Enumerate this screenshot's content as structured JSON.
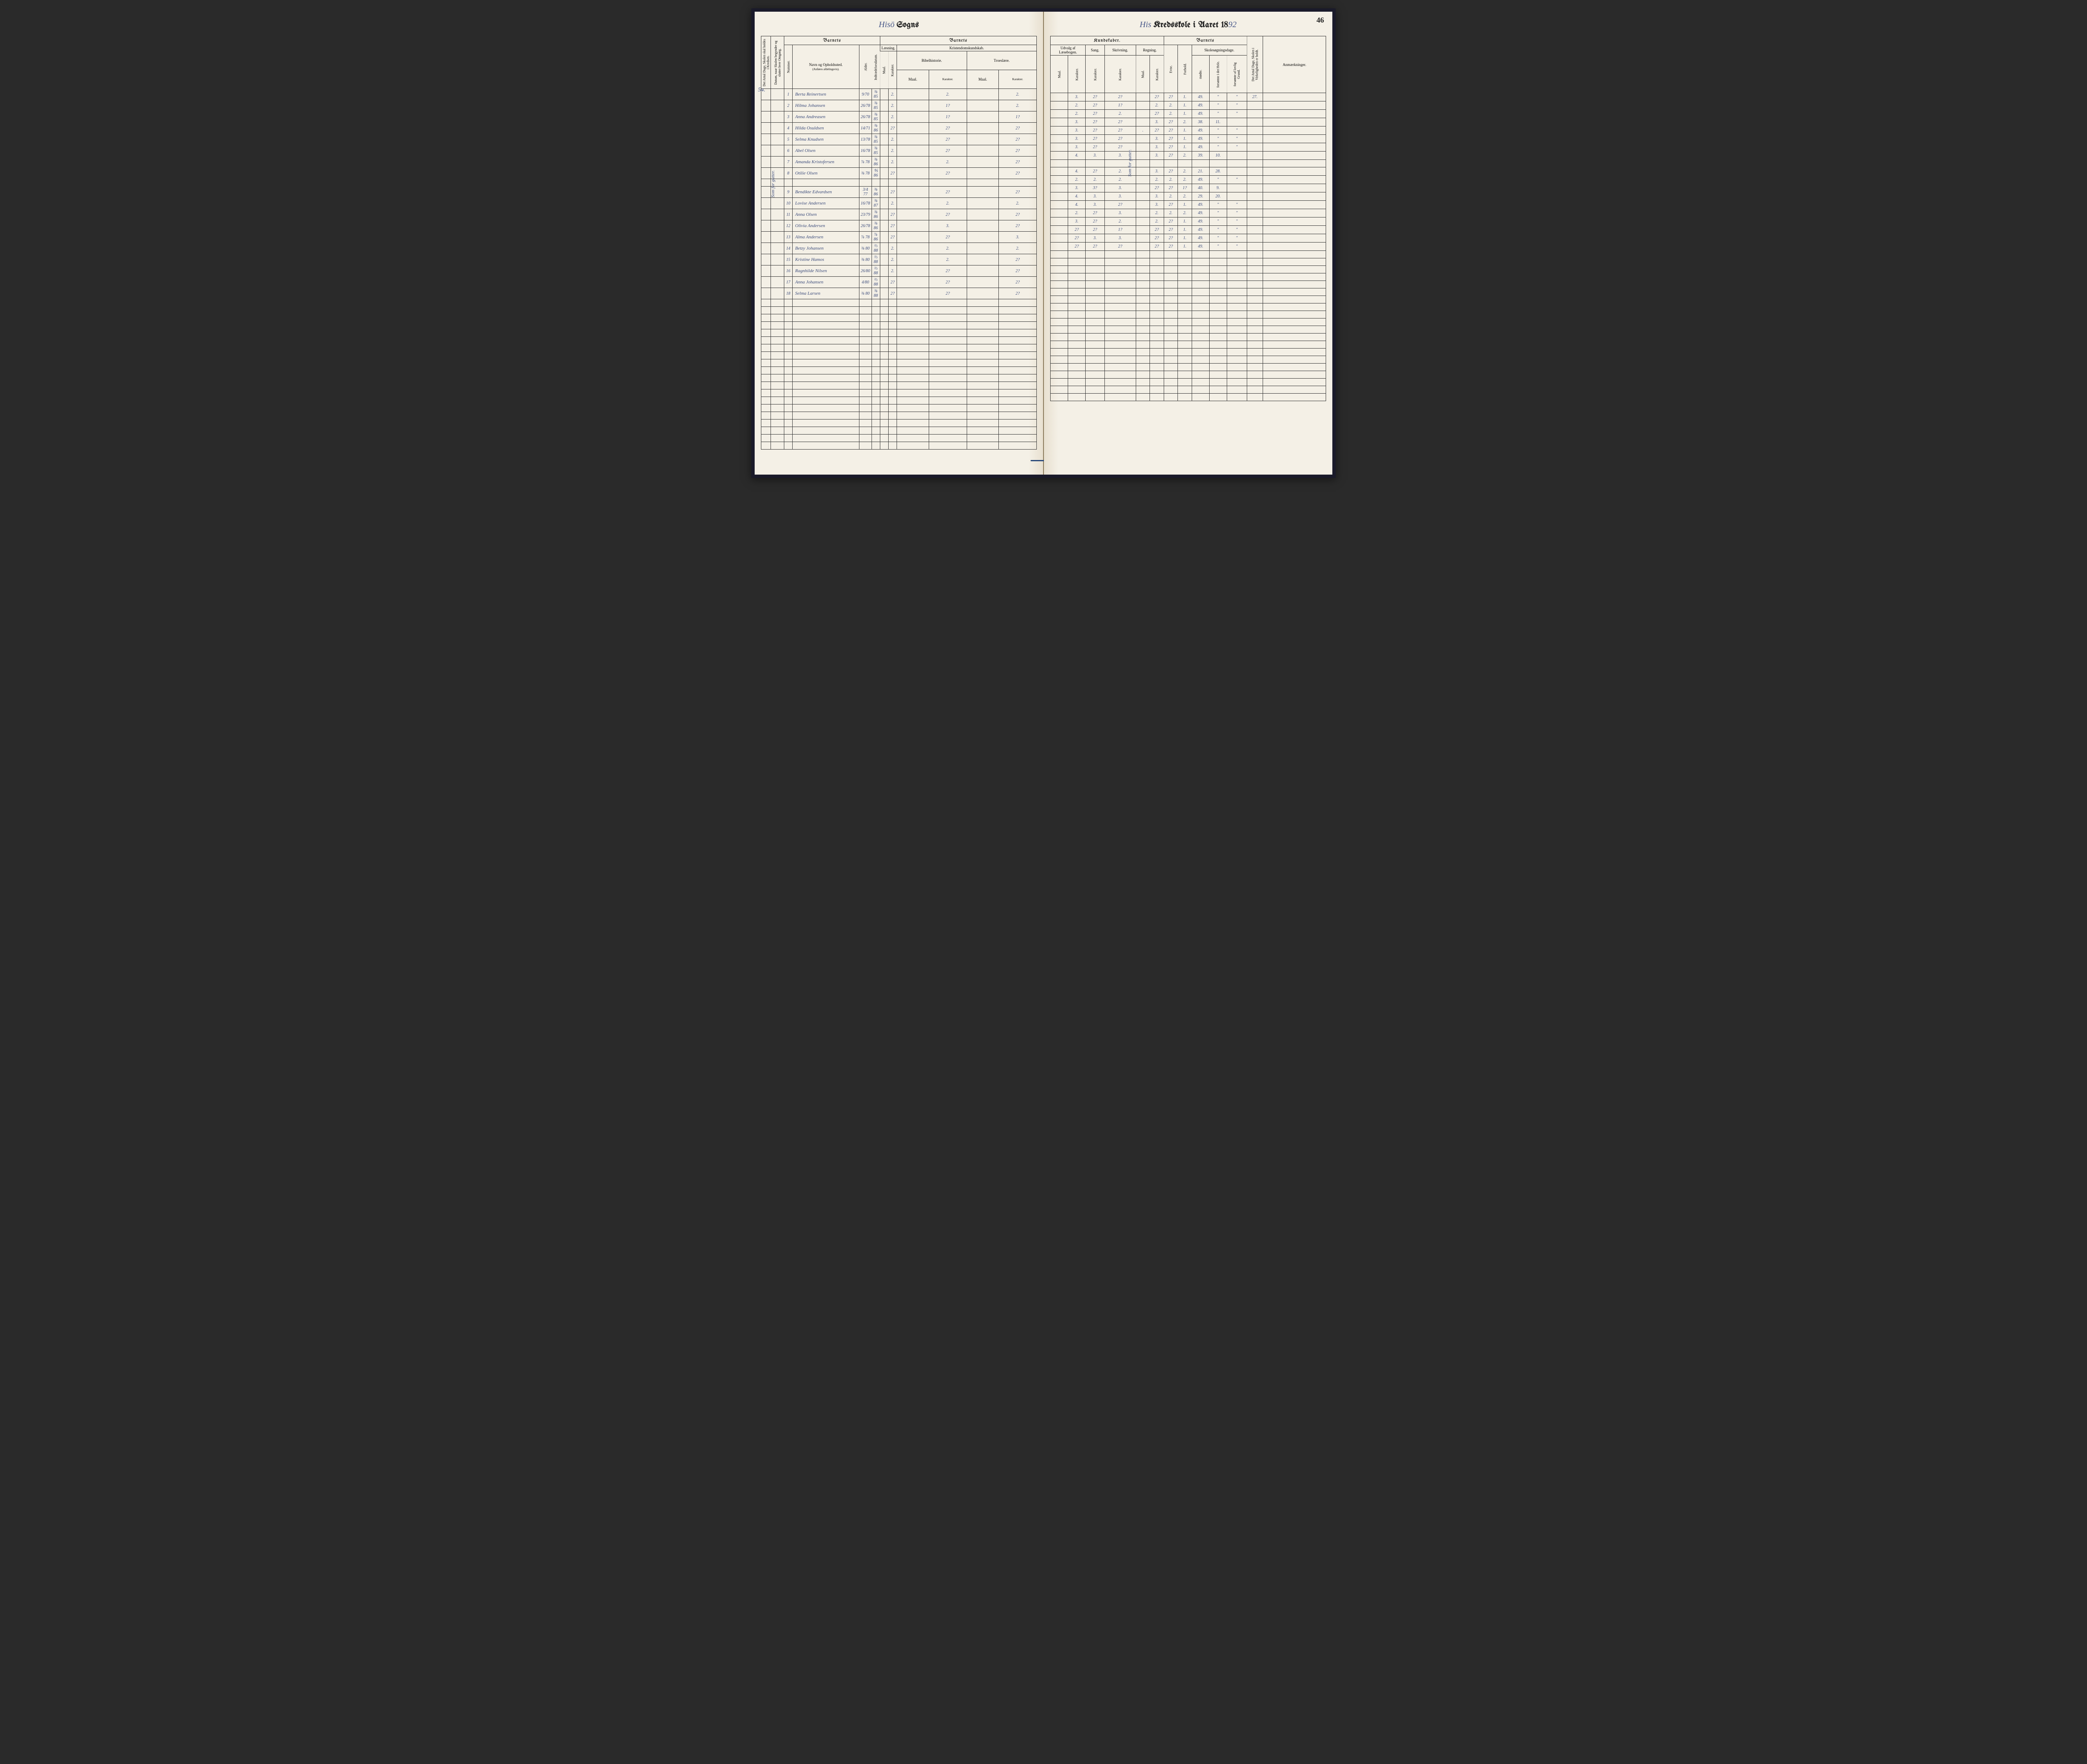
{
  "pageNumber": "46",
  "leftTitle": {
    "script": "Hisö",
    "print": "Sogns"
  },
  "rightTitle": {
    "script": "His",
    "print": "Kredsskole i Aaret 18",
    "year": "92"
  },
  "marginNote": "54.",
  "colors": {
    "paper": "#f4f0e6",
    "ink": "#222",
    "handwriting": "#3a4a7a",
    "border": "#333"
  },
  "headers": {
    "left": {
      "barnets": "Barnets",
      "antalDage": "Det Antal Dage, Skolen skal holdes i Kredsen.",
      "datum": "Datum, naar Skolen begynder og slutter hver Omgang.",
      "nummer": "Nummer.",
      "navn": "Navn og Opholdssted.",
      "navnSub": "(Anføres afdelingsvis).",
      "alder": "Alder.",
      "indtraedelse": "Indtrædelsesdatum.",
      "laesning": "Læsning.",
      "kristendom": "Kristendomskundskab.",
      "bibelhistorie": "Bibelhistorie.",
      "troeslaere": "Troeslære.",
      "maal": "Maal.",
      "karakter": "Karakter."
    },
    "right": {
      "kundskaber": "Kundskaber.",
      "barnets": "Barnets",
      "udvalg": "Udvalg af Læsebogen.",
      "sang": "Sang.",
      "skrivning": "Skrivning.",
      "regning": "Regning.",
      "evne": "Evne.",
      "forhold": "Forhold.",
      "skolesogning": "Skolesøgningsdage.",
      "modte": "mødte.",
      "forsomteHele": "forsømte i det Hele.",
      "forsomteGrund": "forsømte af lovlig Grund.",
      "antalDageHoldt": "Det Antal Dage, Skolen i Virkeligheden er holdt.",
      "anmaerkninger": "Anmærkninger.",
      "maal": "Maal.",
      "karakter": "Karakter."
    }
  },
  "topRightNote": "27.",
  "rows": [
    {
      "n": "1",
      "name": "Berta Reinertsen",
      "alder": "9/70",
      "ind": "⅜ 85",
      "laes_k": "2.",
      "bib_k": "2.",
      "tro_k": "2.",
      "udv_m": "",
      "udv_k": "3.",
      "sang": "2?",
      "skr": "2?",
      "reg_m": "",
      "reg_k": "2?",
      "evne": "2?",
      "forh": "1.",
      "modte": "49.",
      "fors1": "\"",
      "fors2": "\""
    },
    {
      "n": "2",
      "name": "Hilma Johansen",
      "alder": "26/78",
      "ind": "⅜ 85",
      "laes_k": "2.",
      "bib_k": "1?",
      "tro_k": "2.",
      "udv_m": "",
      "udv_k": "2.",
      "sang": "2?",
      "skr": "1?",
      "reg_m": "",
      "reg_k": "2.",
      "evne": "2.",
      "forh": "1.",
      "modte": "49.",
      "fors1": "\"",
      "fors2": "\""
    },
    {
      "n": "3",
      "name": "Anna Andreasen",
      "alder": "26/78",
      "ind": "⅜ 85",
      "laes_k": "2.",
      "bib_k": "1?",
      "tro_k": "1?",
      "udv_m": "",
      "udv_k": "2.",
      "sang": "2?",
      "skr": "2.",
      "reg_m": "",
      "reg_k": "2?",
      "evne": "2.",
      "forh": "1.",
      "modte": "49.",
      "fors1": "\"",
      "fors2": "\""
    },
    {
      "n": "4",
      "name": "Hilda Osuldsen",
      "alder": "14/71",
      "ind": "⅜ 86",
      "laes_k": "2?",
      "bib_k": "2?",
      "tro_k": "2?",
      "udv_m": "",
      "udv_k": "3.",
      "sang": "2?",
      "skr": "2?",
      "reg_m": "",
      "reg_k": "3.",
      "evne": "2?",
      "forh": "2.",
      "modte": "38.",
      "fors1": "11.",
      "fors2": ""
    },
    {
      "n": "5",
      "name": "Selma Knudsen",
      "alder": "13/78",
      "ind": "⅜ 85",
      "laes_k": "2.",
      "bib_k": "2?",
      "tro_k": "2?",
      "udv_m": "",
      "udv_k": "3.",
      "sang": "2?",
      "skr": "2?",
      "reg_m": ".",
      "reg_k": "2?",
      "evne": "2?",
      "forh": "1.",
      "modte": "49.",
      "fors1": "\"",
      "fors2": "\""
    },
    {
      "n": "6",
      "name": "Abel Olsen",
      "alder": "16/78",
      "ind": "⅜ 85",
      "laes_k": "2.",
      "bib_k": "2?",
      "tro_k": "2?",
      "udv_m": "",
      "udv_k": "3.",
      "sang": "2?",
      "skr": "2?",
      "reg_m": "",
      "reg_k": "3.",
      "evne": "2?",
      "forh": "1.",
      "modte": "49.",
      "fors1": "\"",
      "fors2": "\""
    },
    {
      "n": "7",
      "name": "Amanda Kristofersen",
      "alder": "⅞ 78",
      "ind": "⅜ 86",
      "laes_k": "2.",
      "bib_k": "2.",
      "tro_k": "2?",
      "udv_m": "",
      "udv_k": "3.",
      "sang": "2?",
      "skr": "2?",
      "reg_m": "",
      "reg_k": "3.",
      "evne": "2?",
      "forh": "1.",
      "modte": "49.",
      "fors1": "\"",
      "fors2": "\""
    },
    {
      "n": "8",
      "name": "Otilie Olsen",
      "alder": "⅜ 78",
      "ind": "⅘ 86",
      "laes_k": "2?",
      "bib_k": "2?",
      "tro_k": "2?",
      "udv_m": "",
      "udv_k": "4.",
      "sang": "3.",
      "skr": "3.",
      "reg_m": "",
      "reg_k": "3.",
      "evne": "2?",
      "forh": "2.",
      "modte": "39.",
      "fors1": "10.",
      "fors2": ""
    },
    {
      "gap": true
    },
    {
      "n": "9",
      "name": "Bendikte Edvardsen",
      "alder": "3/4 77",
      "ind": "⅜ 86",
      "laes_k": "2?",
      "bib_k": "2?",
      "tro_k": "2?",
      "udv_m": "",
      "udv_k": "4.",
      "sang": "2?",
      "skr": "2.",
      "reg_m": "",
      "reg_k": "3.",
      "evne": "2?",
      "forh": "2.",
      "modte": "21.",
      "fors1": "28.",
      "fors2": ""
    },
    {
      "n": "10",
      "name": "Lovise Andersen",
      "alder": "16/78",
      "ind": "⅜ 87",
      "laes_k": "2.",
      "bib_k": "2.",
      "tro_k": "2.",
      "udv_m": "",
      "udv_k": "2.",
      "sang": "2.",
      "skr": "2.",
      "reg_m": "",
      "reg_k": "2.",
      "evne": "2.",
      "forh": "2.",
      "modte": "49.",
      "fors1": "\"",
      "fors2": "\""
    },
    {
      "n": "11",
      "name": "Anna Olsen",
      "alder": "23/79",
      "ind": "⅜ 86",
      "laes_k": "2?",
      "bib_k": "2?",
      "tro_k": "2?",
      "udv_m": "",
      "udv_k": "3.",
      "sang": "3?",
      "skr": "3.",
      "reg_m": "",
      "reg_k": "2?",
      "evne": "2?",
      "forh": "1?",
      "modte": "40.",
      "fors1": "9.",
      "fors2": ""
    },
    {
      "n": "12",
      "name": "Olivia Andersen",
      "alder": "26/78",
      "ind": "⅜ 86",
      "laes_k": "2?",
      "bib_k": "3.",
      "tro_k": "2?",
      "udv_m": "",
      "udv_k": "4.",
      "sang": "3.",
      "skr": "3.",
      "reg_m": "",
      "reg_k": "3.",
      "evne": "2.",
      "forh": "2.",
      "modte": "29.",
      "fors1": "20.",
      "fors2": ""
    },
    {
      "n": "13",
      "name": "Alma Andersen",
      "alder": "⅞ 78",
      "ind": "⅞ 86",
      "laes_k": "2?",
      "bib_k": "2?",
      "tro_k": "3.",
      "udv_m": "",
      "udv_k": "4.",
      "sang": "3.",
      "skr": "2?",
      "reg_m": "",
      "reg_k": "3.",
      "evne": "2?",
      "forh": "1.",
      "modte": "49.",
      "fors1": "\"",
      "fors2": "\""
    },
    {
      "n": "14",
      "name": "Betzy Johansen",
      "alder": "⅜ 80",
      "ind": "⅔ 88",
      "laes_k": "2.",
      "bib_k": "2.",
      "tro_k": "2.",
      "udv_m": "",
      "udv_k": "2.",
      "sang": "2?",
      "skr": "3.",
      "reg_m": "",
      "reg_k": "2.",
      "evne": "2.",
      "forh": "2.",
      "modte": "49.",
      "fors1": "\"",
      "fors2": "\""
    },
    {
      "n": "15",
      "name": "Kristine Hamos",
      "alder": "⅜ 80",
      "ind": "⅔ 88",
      "laes_k": "2.",
      "bib_k": "2.",
      "tro_k": "2?",
      "udv_m": "",
      "udv_k": "3.",
      "sang": "2?",
      "skr": "2.",
      "reg_m": "",
      "reg_k": "2.",
      "evne": "2?",
      "forh": "1.",
      "modte": "49.",
      "fors1": "\"",
      "fors2": "\""
    },
    {
      "n": "16",
      "name": "Ragnhilde Nilsen",
      "alder": "26/80",
      "ind": "⅔ 88",
      "laes_k": "2.",
      "bib_k": "2?",
      "tro_k": "2?",
      "udv_m": "",
      "udv_k": "2?",
      "sang": "2?",
      "skr": "1?",
      "reg_m": "",
      "reg_k": "2?",
      "evne": "2?",
      "forh": "1.",
      "modte": "49.",
      "fors1": "\"",
      "fors2": "\""
    },
    {
      "n": "17",
      "name": "Anna Johansen",
      "alder": "4/80",
      "ind": "⅔ 88",
      "laes_k": "2?",
      "bib_k": "2?",
      "tro_k": "2?",
      "udv_m": "",
      "udv_k": "2?",
      "sang": "3.",
      "skr": "3.",
      "reg_m": "",
      "reg_k": "2?",
      "evne": "2?",
      "forh": "1.",
      "modte": "49.",
      "fors1": "\"",
      "fors2": "\""
    },
    {
      "n": "18",
      "name": "Selma Larsen",
      "alder": "⅜ 80",
      "ind": "⅜ 88",
      "laes_k": "2?",
      "bib_k": "2?",
      "tro_k": "2?",
      "udv_m": "",
      "udv_k": "2?",
      "sang": "2?",
      "skr": "2?",
      "reg_m": "",
      "reg_k": "2?",
      "evne": "2?",
      "forh": "1.",
      "modte": "49.",
      "fors1": "\"",
      "fors2": "\""
    }
  ],
  "emptyRowCount": 20
}
